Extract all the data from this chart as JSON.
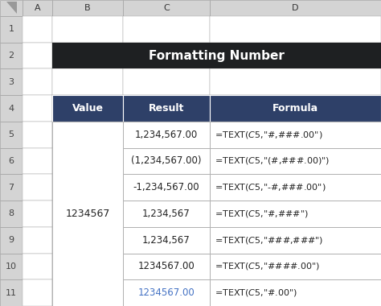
{
  "title": "Formatting Number",
  "title_bg": "#1e2022",
  "title_color": "#ffffff",
  "header_bg": "#2e4068",
  "header_color": "#ffffff",
  "headers": [
    "Value",
    "Result",
    "Formula"
  ],
  "rows": [
    [
      "1,234,567.00",
      "=TEXT($C$5,\"#,###.00\")"
    ],
    [
      "(1,234,567.00)",
      "=TEXT($C$5,\"(#,###.00)\")"
    ],
    [
      "-1,234,567.00",
      "=TEXT($C$5,\"-#,###.00\")"
    ],
    [
      "1,234,567",
      "=TEXT($C$5,\"#,###\")"
    ],
    [
      "1,234,567",
      "=TEXT($C$5,\"###,###\")"
    ],
    [
      "1234567.00",
      "=TEXT($C$5,\"####.00\")"
    ],
    [
      "1234567.00",
      "=TEXT($C$5,\"#.00\")"
    ]
  ],
  "value_label": "1234567",
  "last_row_result_color": "#4472c4",
  "cell_border_color": "#b0b0b0",
  "excel_header_bg": "#d4d4d4",
  "excel_border_color": "#a0a0a0",
  "row_number_color": "#444444",
  "fig_bg": "#ffffff",
  "excel_col_labels": [
    "A",
    "B",
    "C",
    "D"
  ],
  "excel_row_labels": [
    "1",
    "2",
    "3",
    "4",
    "5",
    "6",
    "7",
    "8",
    "9",
    "10",
    "11"
  ]
}
